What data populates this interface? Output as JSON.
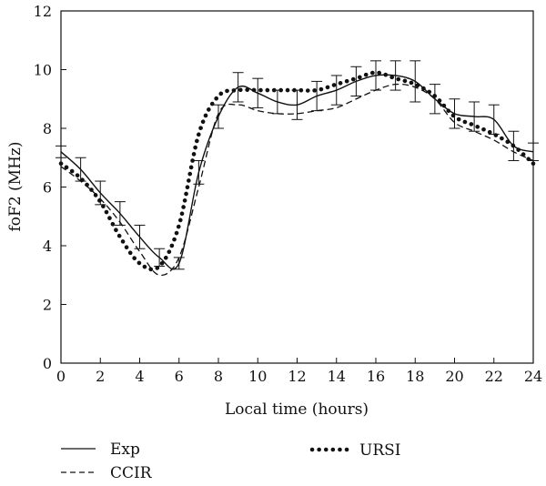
{
  "chart_data": {
    "type": "line",
    "xlabel": "Local time (hours)",
    "ylabel": "foF2 (MHz)",
    "xlim": [
      0,
      24
    ],
    "ylim": [
      0,
      12
    ],
    "xticks": [
      0,
      2,
      4,
      6,
      8,
      10,
      12,
      14,
      16,
      18,
      20,
      22,
      24
    ],
    "yticks": [
      0,
      2,
      4,
      6,
      8,
      10,
      12
    ],
    "grid": false,
    "legend_position": "bottom",
    "series": [
      {
        "name": "Exp",
        "style": "solid",
        "x": [
          0,
          1,
          2,
          3,
          4,
          5,
          6,
          7,
          8,
          9,
          10,
          11,
          12,
          13,
          14,
          15,
          16,
          17,
          18,
          19,
          20,
          21,
          22,
          23,
          24
        ],
        "y": [
          7.2,
          6.6,
          5.8,
          5.1,
          4.3,
          3.6,
          3.4,
          6.5,
          8.4,
          9.4,
          9.2,
          8.9,
          8.8,
          9.1,
          9.3,
          9.6,
          9.8,
          9.8,
          9.6,
          9.0,
          8.5,
          8.4,
          8.3,
          7.4,
          7.2
        ],
        "error": [
          0.2,
          0.4,
          0.4,
          0.4,
          0.4,
          0.3,
          0.2,
          0.4,
          0.4,
          0.5,
          0.5,
          0.4,
          0.5,
          0.5,
          0.5,
          0.5,
          0.5,
          0.5,
          0.7,
          0.5,
          0.5,
          0.5,
          0.5,
          0.5,
          0.3
        ]
      },
      {
        "name": "CCIR",
        "style": "dashed",
        "x": [
          0,
          1,
          2,
          3,
          4,
          5,
          6,
          7,
          8,
          9,
          10,
          11,
          12,
          13,
          14,
          15,
          16,
          17,
          18,
          19,
          20,
          21,
          22,
          23,
          24
        ],
        "y": [
          6.7,
          6.2,
          5.6,
          4.8,
          3.8,
          3.0,
          3.6,
          6.0,
          8.5,
          8.8,
          8.6,
          8.5,
          8.5,
          8.6,
          8.7,
          9.0,
          9.3,
          9.5,
          9.4,
          9.0,
          8.2,
          7.9,
          7.6,
          7.2,
          6.9
        ]
      },
      {
        "name": "URSI",
        "style": "dotted",
        "x": [
          0,
          1,
          2,
          3,
          4,
          5,
          6,
          7,
          8,
          9,
          10,
          11,
          12,
          13,
          14,
          15,
          16,
          17,
          18,
          19,
          20,
          21,
          22,
          23,
          24
        ],
        "y": [
          6.8,
          6.3,
          5.5,
          4.3,
          3.4,
          3.3,
          4.7,
          7.8,
          9.1,
          9.3,
          9.3,
          9.3,
          9.3,
          9.3,
          9.5,
          9.7,
          9.9,
          9.7,
          9.5,
          9.1,
          8.4,
          8.1,
          7.8,
          7.4,
          6.8
        ]
      }
    ]
  }
}
